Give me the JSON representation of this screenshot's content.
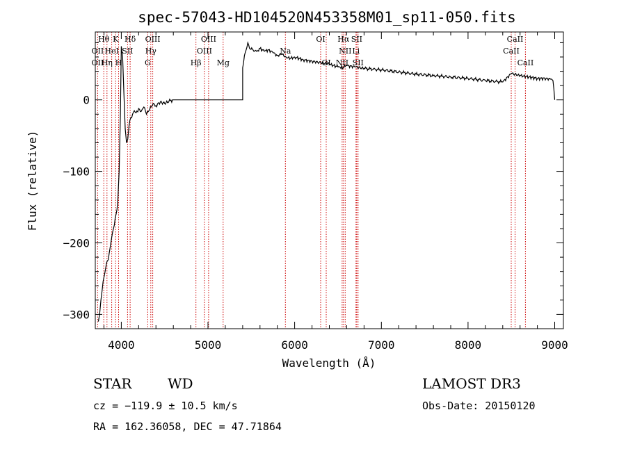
{
  "title": "spec-57043-HD104520N453358M01_sp11-050.fits",
  "chart_data": {
    "type": "line",
    "title": "spec-57043-HD104520N453358M01_sp11-050.fits",
    "xlabel": "Wavelength (Å)",
    "ylabel": "Flux (relative)",
    "xlim": [
      3700,
      9100
    ],
    "ylim": [
      -320,
      95
    ],
    "xticks": [
      4000,
      5000,
      6000,
      7000,
      8000,
      9000
    ],
    "xtick_labels": [
      "4000",
      "5000",
      "6000",
      "7000",
      "8000",
      "9000"
    ],
    "yticks": [
      -300,
      -200,
      -100,
      0
    ],
    "ytick_labels": [
      "−300",
      "−200",
      "−100",
      "0"
    ],
    "grid": false,
    "series": [
      {
        "x": [
          3735,
          3750,
          3765,
          3780,
          3800,
          3820,
          3840,
          3860,
          3880,
          3900,
          3920,
          3940,
          3960,
          3975,
          3990,
          4000,
          4015,
          4030,
          4045,
          4060,
          4075,
          4090,
          4110,
          4130,
          4150,
          4170,
          4200,
          4230,
          4260,
          4290,
          4320,
          4345,
          4370,
          4400,
          4450,
          4500,
          4550,
          4590,
          4600,
          5400,
          5400,
          5420,
          5440,
          5460,
          5480,
          5520,
          5560,
          5600,
          5650,
          5700,
          5750,
          5800,
          5850,
          5900,
          5950,
          6000,
          6100,
          6200,
          6300,
          6400,
          6500,
          6560,
          6600,
          6700,
          6800,
          7000,
          7200,
          7400,
          7600,
          7800,
          8000,
          8200,
          8400,
          8500,
          8600,
          8700,
          8800,
          8900,
          8950,
          8980,
          9000
        ],
        "y": [
          -310,
          -300,
          -280,
          -265,
          -248,
          -235,
          -225,
          -215,
          -200,
          -185,
          -175,
          -160,
          -140,
          -100,
          -20,
          75,
          60,
          10,
          -40,
          -60,
          -55,
          -35,
          -25,
          -20,
          -15,
          -18,
          -12,
          -16,
          -10,
          -20,
          -15,
          -10,
          -5,
          -8,
          -3,
          -5,
          -2,
          0,
          0,
          0,
          45,
          62,
          70,
          80,
          72,
          70,
          68,
          72,
          68,
          70,
          66,
          62,
          64,
          60,
          58,
          60,
          56,
          54,
          52,
          50,
          46,
          45,
          48,
          46,
          44,
          42,
          39,
          36,
          34,
          32,
          30,
          27,
          25,
          37,
          34,
          32,
          30,
          30,
          29,
          27,
          0
        ]
      }
    ],
    "lines": [
      {
        "name": "OII",
        "x": 3727
      },
      {
        "name": "Hθ",
        "x": 3798
      },
      {
        "name": "Hη",
        "x": 3835
      },
      {
        "name": "HeI",
        "x": 3889
      },
      {
        "name": "K",
        "x": 3934
      },
      {
        "name": "H",
        "x": 3969
      },
      {
        "name": "SII",
        "x": 4072
      },
      {
        "name": "Hδ",
        "x": 4102
      },
      {
        "name": "G",
        "x": 4305
      },
      {
        "name": "Hγ",
        "x": 4340
      },
      {
        "name": "OIII",
        "x": 4363
      },
      {
        "name": "Hβ",
        "x": 4861
      },
      {
        "name": "OIII",
        "x": 4959
      },
      {
        "name": "OIII",
        "x": 5007
      },
      {
        "name": "Mg",
        "x": 5175
      },
      {
        "name": "Na",
        "x": 5893
      },
      {
        "name": "OI",
        "x": 6300
      },
      {
        "name": "OI",
        "x": 6364
      },
      {
        "name": "NII",
        "x": 6548
      },
      {
        "name": "Hα",
        "x": 6563
      },
      {
        "name": "NII",
        "x": 6583
      },
      {
        "name": "Li",
        "x": 6707
      },
      {
        "name": "SII",
        "x": 6716
      },
      {
        "name": "SII",
        "x": 6731
      },
      {
        "name": "CaII",
        "x": 8498
      },
      {
        "name": "CaII",
        "x": 8542
      },
      {
        "name": "CaII",
        "x": 8662
      }
    ],
    "line_color": "#cc0000",
    "spectrum_color": "#000000"
  },
  "labels": [
    {
      "text": "Hθ",
      "x": 3798,
      "row": 1
    },
    {
      "text": "K",
      "x": 3934,
      "row": 1
    },
    {
      "text": "Hδ",
      "x": 4102,
      "row": 1
    },
    {
      "text": "OIII",
      "x": 4363,
      "row": 1
    },
    {
      "text": "OIII",
      "x": 5007,
      "row": 1
    },
    {
      "text": "OI",
      "x": 6300,
      "row": 1
    },
    {
      "text": "Hα",
      "x": 6563,
      "row": 1
    },
    {
      "text": "SII",
      "x": 6716,
      "row": 1
    },
    {
      "text": "CaII",
      "x": 8542,
      "row": 1
    },
    {
      "text": "OII",
      "x": 3727,
      "row": 2
    },
    {
      "text": "HeI",
      "x": 3889,
      "row": 2
    },
    {
      "text": "SII",
      "x": 4072,
      "row": 2
    },
    {
      "text": "Hγ",
      "x": 4340,
      "row": 2
    },
    {
      "text": "OIII",
      "x": 4959,
      "row": 2
    },
    {
      "text": "Na",
      "x": 5893,
      "row": 2
    },
    {
      "text": "NII",
      "x": 6583,
      "row": 2
    },
    {
      "text": "Li",
      "x": 6707,
      "row": 2
    },
    {
      "text": "CaII",
      "x": 8498,
      "row": 2
    },
    {
      "text": "OII",
      "x": 3727,
      "row": 3
    },
    {
      "text": "Hη",
      "x": 3835,
      "row": 3
    },
    {
      "text": "H",
      "x": 3969,
      "row": 3
    },
    {
      "text": "G",
      "x": 4305,
      "row": 3
    },
    {
      "text": "Hβ",
      "x": 4861,
      "row": 3
    },
    {
      "text": "Mg",
      "x": 5175,
      "row": 3
    },
    {
      "text": "OI",
      "x": 6364,
      "row": 3
    },
    {
      "text": "NII",
      "x": 6548,
      "row": 3
    },
    {
      "text": "SII",
      "x": 6731,
      "row": 3
    },
    {
      "text": "CaII",
      "x": 8662,
      "row": 3
    }
  ],
  "info": {
    "class": "STAR",
    "subclass": "WD",
    "survey": "LAMOST DR3",
    "cz": "cz = −119.9 ± 10.5 km/s",
    "obs_date": "Obs-Date: 20150120",
    "coords": "RA = 162.36058, DEC =  47.71864"
  }
}
